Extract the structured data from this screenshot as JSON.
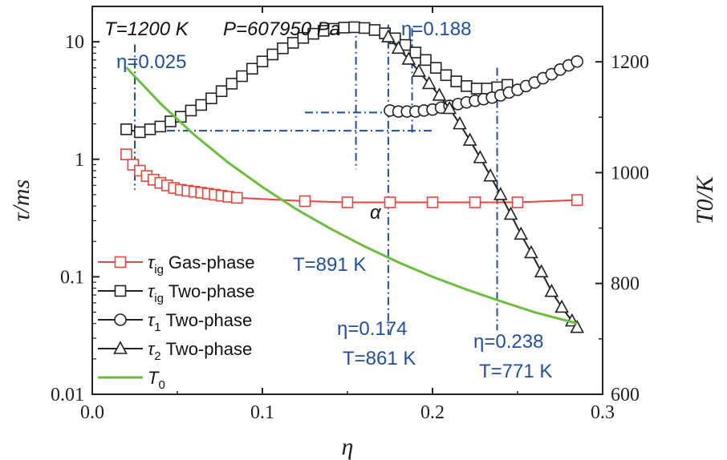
{
  "chart_data": {
    "type": "line",
    "title": "T=1200 K P=607950 Pa",
    "title_T": "T=1200 K",
    "title_P": "P=607950 Pa",
    "xlabel": "η",
    "ylabel_left": "τ/ms",
    "ylabel_right": "T0/K",
    "xlim": [
      0.0,
      0.3
    ],
    "ylim_left_log": [
      0.01,
      20
    ],
    "ylim_right": [
      600,
      1300
    ],
    "x_ticks": [
      "0.0",
      "0.1",
      "0.2",
      "0.3"
    ],
    "y_left_ticks": [
      "0.01",
      "0.1",
      "1",
      "10"
    ],
    "y_right_ticks": [
      "600",
      "800",
      "1000",
      "1200"
    ],
    "series": [
      {
        "name": "τig Gas-phase",
        "color": "#e8453c",
        "marker": "square",
        "x": [
          0.02,
          0.024,
          0.028,
          0.032,
          0.036,
          0.04,
          0.044,
          0.048,
          0.052,
          0.056,
          0.06,
          0.064,
          0.068,
          0.072,
          0.076,
          0.08,
          0.085,
          0.125,
          0.15,
          0.175,
          0.2,
          0.225,
          0.25,
          0.285
        ],
        "y": [
          1.1,
          0.9,
          0.8,
          0.72,
          0.67,
          0.63,
          0.6,
          0.57,
          0.55,
          0.54,
          0.53,
          0.52,
          0.51,
          0.5,
          0.49,
          0.48,
          0.47,
          0.44,
          0.43,
          0.43,
          0.43,
          0.43,
          0.43,
          0.45
        ]
      },
      {
        "name": "τig Two-phase",
        "color": "#222222",
        "marker": "square",
        "x": [
          0.02,
          0.028,
          0.034,
          0.04,
          0.046,
          0.052,
          0.058,
          0.064,
          0.07,
          0.076,
          0.082,
          0.088,
          0.094,
          0.1,
          0.106,
          0.112,
          0.118,
          0.124,
          0.13,
          0.136,
          0.142,
          0.148,
          0.154,
          0.16,
          0.166,
          0.172,
          0.178,
          0.184,
          0.19,
          0.196,
          0.202,
          0.208,
          0.214,
          0.22,
          0.226,
          0.232,
          0.238,
          0.244
        ],
        "y": [
          1.8,
          1.7,
          1.8,
          1.9,
          2.1,
          2.3,
          2.6,
          2.9,
          3.3,
          3.8,
          4.4,
          5.1,
          5.9,
          6.8,
          7.8,
          8.8,
          9.8,
          10.8,
          11.7,
          12.4,
          12.9,
          13.2,
          13.3,
          13.1,
          12.6,
          11.8,
          10.7,
          9.4,
          8.1,
          7.0,
          6.0,
          5.2,
          4.6,
          4.2,
          4.0,
          4.0,
          4.1,
          4.3
        ]
      },
      {
        "name": "τ1 Two-phase",
        "color": "#222222",
        "marker": "circle",
        "x": [
          0.175,
          0.18,
          0.185,
          0.19,
          0.195,
          0.2,
          0.205,
          0.21,
          0.215,
          0.22,
          0.225,
          0.23,
          0.235,
          0.24,
          0.245,
          0.25,
          0.255,
          0.26,
          0.265,
          0.27,
          0.275,
          0.28,
          0.285
        ],
        "y": [
          2.6,
          2.55,
          2.55,
          2.55,
          2.6,
          2.65,
          2.75,
          2.85,
          2.95,
          3.05,
          3.15,
          3.25,
          3.35,
          3.5,
          3.7,
          3.9,
          4.2,
          4.5,
          4.9,
          5.3,
          5.8,
          6.3,
          6.8
        ]
      },
      {
        "name": "τ2 Two-phase",
        "color": "#222222",
        "marker": "triangle",
        "x": [
          0.174,
          0.18,
          0.186,
          0.192,
          0.198,
          0.204,
          0.21,
          0.216,
          0.222,
          0.228,
          0.234,
          0.24,
          0.246,
          0.252,
          0.258,
          0.264,
          0.27,
          0.276,
          0.282,
          0.285
        ],
        "y": [
          11.0,
          8.8,
          7.1,
          5.6,
          4.4,
          3.5,
          2.7,
          2.0,
          1.45,
          1.03,
          0.72,
          0.5,
          0.34,
          0.23,
          0.16,
          0.11,
          0.075,
          0.055,
          0.042,
          0.037
        ]
      },
      {
        "name": "T0",
        "color": "#6abf3b",
        "marker": "none",
        "axis": "right",
        "x": [
          0.02,
          0.04,
          0.06,
          0.08,
          0.1,
          0.12,
          0.14,
          0.16,
          0.18,
          0.2,
          0.22,
          0.24,
          0.26,
          0.285
        ],
        "y": [
          1190,
          1125,
          1068,
          1018,
          974,
          934,
          899,
          867,
          838,
          812,
          789,
          768,
          748,
          728
        ]
      }
    ],
    "annotations": [
      {
        "text": "η=0.025",
        "eta": 0.025
      },
      {
        "text": "η=0.188",
        "eta": 0.188
      },
      {
        "text": "η=0.174",
        "eta": 0.174
      },
      {
        "text": "T=861 K",
        "temp": 861
      },
      {
        "text": "η=0.238",
        "eta": 0.238
      },
      {
        "text": "T=771 K",
        "temp": 771
      },
      {
        "text": "T=891 K",
        "temp": 891
      },
      {
        "text": "α"
      }
    ],
    "legend": [
      {
        "symbol": "τ",
        "sub": "ig",
        "label": "Gas-phase",
        "marker": "square",
        "color": "#e8453c"
      },
      {
        "symbol": "τ",
        "sub": "ig",
        "label": "Two-phase",
        "marker": "square",
        "color": "#222222"
      },
      {
        "symbol": "τ",
        "sub": "1",
        "label": "Two-phase",
        "marker": "circle",
        "color": "#222222"
      },
      {
        "symbol": "τ",
        "sub": "2",
        "label": "Two-phase",
        "marker": "triangle",
        "color": "#222222"
      },
      {
        "symbol": "T",
        "sub": "0",
        "label": "",
        "marker": "none",
        "color": "#6abf3b"
      }
    ]
  }
}
